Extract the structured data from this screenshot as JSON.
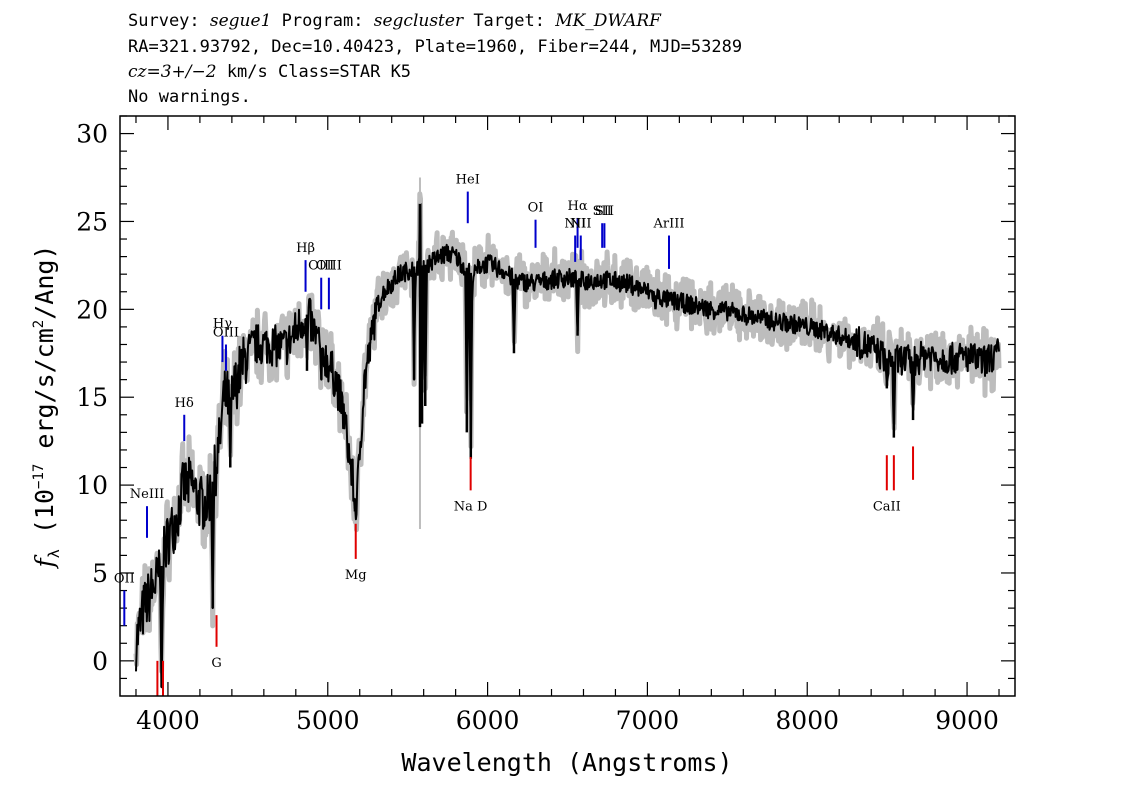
{
  "header": {
    "l1_a": "Survey: ",
    "l1_survey": "segue1",
    "l1_b": " Program: ",
    "l1_program": "segcluster",
    "l1_c": " Target: ",
    "l1_target": "MK_DWARF",
    "line2": "RA=321.93792, Dec=10.40423, Plate=1960, Fiber=244, MJD=53289",
    "l3_cz": "cz=3+/−2",
    "l3_rest": " km/s Class=STAR K5",
    "line4": "No warnings."
  },
  "chart_data": {
    "type": "line",
    "xlabel": "Wavelength (Angstroms)",
    "ylabel": "fλ (10^-17 erg/s/cm^2/Ang)",
    "ylabel_f": "f",
    "ylabel_sub": "λ",
    "ylabel_a": " (10",
    "ylabel_exp1": "−17",
    "ylabel_b": " erg/s/cm",
    "ylabel_exp2": "2",
    "ylabel_c": "/Ang)",
    "xlim": [
      3700,
      9300
    ],
    "ylim": [
      -2,
      31
    ],
    "xticks": [
      4000,
      5000,
      6000,
      7000,
      8000,
      9000
    ],
    "yticks": [
      0,
      5,
      10,
      15,
      20,
      25,
      30
    ],
    "spectrum": {
      "name": "flux",
      "color": "#000000",
      "error_color": "#bdbdbd",
      "x": [
        3800,
        3850,
        3900,
        3950,
        4000,
        4050,
        4100,
        4150,
        4200,
        4250,
        4300,
        4330,
        4350,
        4400,
        4450,
        4500,
        4550,
        4600,
        4650,
        4700,
        4750,
        4800,
        4850,
        4880,
        4900,
        4950,
        5000,
        5050,
        5100,
        5130,
        5160,
        5180,
        5200,
        5230,
        5270,
        5300,
        5350,
        5400,
        5450,
        5500,
        5550,
        5600,
        5650,
        5700,
        5750,
        5800,
        5850,
        5880,
        5900,
        5920,
        5950,
        6000,
        6050,
        6100,
        6150,
        6200,
        6300,
        6400,
        6500,
        6600,
        6700,
        6800,
        6900,
        7000,
        7100,
        7200,
        7300,
        7400,
        7500,
        7600,
        7700,
        7800,
        7900,
        8000,
        8100,
        8200,
        8300,
        8400,
        8450,
        8500,
        8550,
        8600,
        8650,
        8700,
        8750,
        8800,
        8900,
        9000,
        9100,
        9200
      ],
      "y": [
        1,
        3,
        4,
        5,
        7,
        8,
        10,
        10,
        9,
        9,
        11,
        13,
        15,
        15,
        16.5,
        17.5,
        18,
        18,
        18,
        17.8,
        18,
        18.8,
        19.5,
        19.8,
        19,
        18,
        17,
        16,
        14,
        12,
        10,
        8.5,
        12,
        16,
        18,
        20,
        21,
        21.5,
        22,
        22.2,
        22.5,
        22.5,
        22.7,
        23,
        23.2,
        23,
        22.5,
        22.3,
        22,
        22,
        22.5,
        22.6,
        22.4,
        22.2,
        21.8,
        21.6,
        21.5,
        21.7,
        21.8,
        21.6,
        21.7,
        21.6,
        21.4,
        21,
        20.6,
        20.4,
        20.2,
        20,
        19.9,
        19.7,
        19.5,
        19.3,
        19.2,
        19,
        18.8,
        18.5,
        18.2,
        17.8,
        17.5,
        17.2,
        17,
        17.2,
        17,
        17.2,
        17.5,
        17.3,
        17.2,
        17.3,
        17,
        17.5
      ]
    },
    "dips": [
      {
        "x": 3960,
        "y": -1.5
      },
      {
        "x": 4280,
        "y": 3
      },
      {
        "x": 4390,
        "y": 11
      },
      {
        "x": 4870,
        "y": 16.5
      },
      {
        "x": 4960,
        "y": 16
      },
      {
        "x": 5170,
        "y": 8.5
      },
      {
        "x": 5540,
        "y": 16
      },
      {
        "x": 5590,
        "y": 13.5
      },
      {
        "x": 5610,
        "y": 14.5
      },
      {
        "x": 5870,
        "y": 13
      },
      {
        "x": 5895,
        "y": 11.5
      },
      {
        "x": 6165,
        "y": 17.5
      },
      {
        "x": 6563,
        "y": 18.5
      },
      {
        "x": 7050,
        "y": 20
      },
      {
        "x": 8498,
        "y": 15.5
      },
      {
        "x": 8542,
        "y": 12.7
      },
      {
        "x": 8662,
        "y": 13.7
      }
    ],
    "spikes": [
      {
        "x": 5577,
        "y": 26
      }
    ],
    "emission_lines": [
      {
        "label": "OII",
        "x": 3727,
        "y1": 2,
        "y2": 4
      },
      {
        "label": "NeIII",
        "x": 3869,
        "y1": 7,
        "y2": 8.8
      },
      {
        "label": "Hδ",
        "x": 4102,
        "y1": 12.5,
        "y2": 14
      },
      {
        "label": "Hγ",
        "x": 4341,
        "y1": 17,
        "y2": 18.5
      },
      {
        "label": "OIII",
        "x": 4363,
        "y1": 16.5,
        "y2": 18
      },
      {
        "label": "Hβ",
        "x": 4861,
        "y1": 21,
        "y2": 22.8
      },
      {
        "label": "OIII",
        "x": 4959,
        "y1": 20,
        "y2": 21.8
      },
      {
        "label": "OIII",
        "x": 5007,
        "y1": 20,
        "y2": 21.8
      },
      {
        "label": "HeI",
        "x": 5876,
        "y1": 24.9,
        "y2": 26.7
      },
      {
        "label": "OI",
        "x": 6300,
        "y1": 23.5,
        "y2": 25.1
      },
      {
        "label": "NII",
        "x": 6548,
        "y1": 22.7,
        "y2": 24.2
      },
      {
        "label": "Hα",
        "x": 6563,
        "y1": 23.5,
        "y2": 25.2
      },
      {
        "label": "NII",
        "x": 6583,
        "y1": 22.8,
        "y2": 24.2
      },
      {
        "label": "SII",
        "x": 6717,
        "y1": 23.5,
        "y2": 24.9
      },
      {
        "label": "SII",
        "x": 6731,
        "y1": 23.5,
        "y2": 24.9
      },
      {
        "label": "ArIII",
        "x": 7135,
        "y1": 22.3,
        "y2": 24.2
      }
    ],
    "absorption_lines": [
      {
        "label": "",
        "x": 3934,
        "y1": -2,
        "y2": 0
      },
      {
        "label": "",
        "x": 3969,
        "y1": -2,
        "y2": 0
      },
      {
        "label": "G",
        "x": 4304,
        "y1": 0.8,
        "y2": 2.6
      },
      {
        "label": "Mg",
        "x": 5175,
        "y1": 5.8,
        "y2": 7.8
      },
      {
        "label": "Na D",
        "x": 5894,
        "y1": 9.7,
        "y2": 11.6
      },
      {
        "label": "CaII",
        "x": 8498,
        "y1": 9.7,
        "y2": 11.7
      },
      {
        "label": "",
        "x": 8542,
        "y1": 9.7,
        "y2": 11.7
      },
      {
        "label": "",
        "x": 8662,
        "y1": 10.3,
        "y2": 12.2
      }
    ],
    "colors": {
      "emission": "#0000cc",
      "absorption": "#e00000"
    }
  }
}
